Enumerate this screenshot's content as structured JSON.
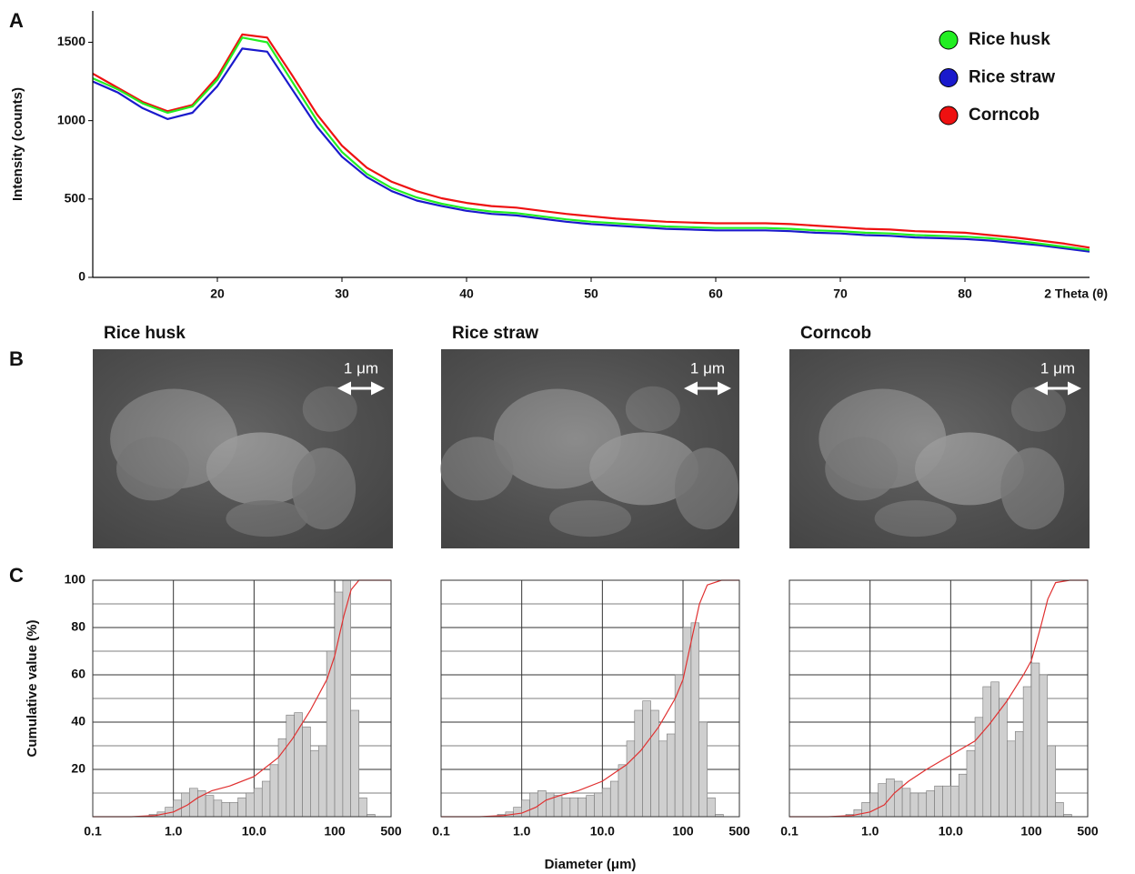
{
  "chart_data": [
    {
      "type": "line",
      "panel": "A",
      "ylabel": "Intensity (counts)",
      "xlabel": "2 Theta (θ)",
      "x": [
        10,
        12,
        14,
        16,
        18,
        20,
        22,
        24,
        26,
        28,
        30,
        32,
        34,
        36,
        38,
        40,
        42,
        44,
        46,
        48,
        50,
        52,
        54,
        56,
        58,
        60,
        62,
        64,
        66,
        68,
        70,
        72,
        74,
        76,
        78,
        80,
        82,
        84,
        86,
        88,
        90
      ],
      "series": [
        {
          "name": "Rice husk",
          "color": "#22ee22",
          "values": [
            1270,
            1200,
            1110,
            1050,
            1090,
            1260,
            1530,
            1500,
            1250,
            1000,
            800,
            660,
            570,
            510,
            470,
            440,
            420,
            410,
            390,
            370,
            355,
            345,
            335,
            325,
            320,
            315,
            315,
            315,
            310,
            300,
            295,
            285,
            280,
            270,
            265,
            260,
            250,
            235,
            215,
            195,
            175
          ]
        },
        {
          "name": "Rice straw",
          "color": "#1a1acc",
          "values": [
            1250,
            1180,
            1080,
            1010,
            1050,
            1220,
            1460,
            1440,
            1200,
            960,
            770,
            640,
            550,
            490,
            455,
            425,
            405,
            395,
            375,
            355,
            340,
            330,
            320,
            310,
            305,
            300,
            300,
            300,
            295,
            285,
            280,
            270,
            265,
            255,
            250,
            245,
            235,
            220,
            205,
            185,
            165
          ]
        },
        {
          "name": "Corncob",
          "color": "#ee1111",
          "values": [
            1300,
            1210,
            1120,
            1060,
            1100,
            1280,
            1550,
            1530,
            1290,
            1040,
            840,
            700,
            610,
            550,
            505,
            475,
            455,
            445,
            425,
            405,
            390,
            375,
            365,
            355,
            350,
            345,
            345,
            345,
            340,
            330,
            320,
            310,
            305,
            295,
            290,
            285,
            270,
            255,
            235,
            215,
            190
          ]
        }
      ],
      "xlim": [
        10,
        90
      ],
      "xticks": [
        20,
        30,
        40,
        50,
        60,
        70,
        80
      ],
      "ylim": [
        0,
        1700
      ],
      "yticks": [
        0,
        500,
        1000,
        1500
      ],
      "legend": "top-right"
    },
    {
      "type": "histogram",
      "panel": "C",
      "ylabel": "Cumulative value (%)",
      "log_x": true,
      "ytick_labels": true,
      "bins": [
        0.5,
        0.63,
        0.79,
        1,
        1.26,
        1.58,
        2,
        2.51,
        3.16,
        3.98,
        5.01,
        6.31,
        7.94,
        10,
        12.6,
        15.8,
        20,
        25.1,
        31.6,
        39.8,
        50.1,
        63.1,
        79.4,
        100,
        126,
        158,
        200,
        251,
        316
      ],
      "values": [
        1,
        2,
        4,
        7,
        10,
        12,
        11,
        9,
        7,
        6,
        6,
        8,
        10,
        12,
        15,
        22,
        33,
        43,
        44,
        38,
        28,
        30,
        70,
        95,
        100,
        45,
        8,
        1
      ],
      "bar_color": "#cfcfcf",
      "cumulative": {
        "color": "#e03030",
        "x": [
          0.1,
          0.3,
          0.6,
          1,
          1.5,
          2,
          3,
          5,
          10,
          20,
          30,
          50,
          80,
          100,
          130,
          160,
          200,
          300,
          500
        ],
        "values": [
          0,
          0,
          0.5,
          2,
          5,
          8,
          11,
          13,
          17,
          25,
          33,
          45,
          58,
          68,
          85,
          96,
          100,
          100,
          100
        ]
      },
      "xlim": [
        0.1,
        500
      ],
      "xticks": [
        0.1,
        {
          "value": 1,
          "label": "1.0"
        },
        {
          "value": 10,
          "label": "10.0"
        },
        100,
        500
      ],
      "ylim": [
        0,
        100
      ],
      "yticks": [
        20,
        40,
        60,
        80,
        100
      ],
      "yminor": [
        10,
        30,
        50,
        70,
        90
      ],
      "grid": true
    },
    {
      "type": "histogram",
      "log_x": true,
      "ytick_labels": false,
      "xlabel": "Diameter (μm)",
      "bins": [
        0.5,
        0.63,
        0.79,
        1,
        1.26,
        1.58,
        2,
        2.51,
        3.16,
        3.98,
        5.01,
        6.31,
        7.94,
        10,
        12.6,
        15.8,
        20,
        25.1,
        31.6,
        39.8,
        50.1,
        63.1,
        79.4,
        100,
        126,
        158,
        200,
        251,
        316
      ],
      "values": [
        1,
        2,
        4,
        7,
        10,
        11,
        10,
        9,
        8,
        8,
        8,
        9,
        10,
        12,
        15,
        22,
        32,
        45,
        49,
        45,
        32,
        35,
        60,
        80,
        82,
        40,
        8,
        1
      ],
      "bar_color": "#cfcfcf",
      "cumulative": {
        "color": "#e03030",
        "x": [
          0.1,
          0.3,
          0.6,
          1,
          1.5,
          2,
          3,
          5,
          10,
          20,
          30,
          50,
          80,
          100,
          130,
          160,
          200,
          300,
          500
        ],
        "values": [
          0,
          0,
          0.5,
          1.5,
          4,
          7,
          9,
          11,
          15,
          22,
          28,
          38,
          50,
          58,
          76,
          90,
          98,
          100,
          100
        ]
      },
      "xlim": [
        0.1,
        500
      ],
      "xticks": [
        0.1,
        {
          "value": 1,
          "label": "1.0"
        },
        {
          "value": 10,
          "label": "10.0"
        },
        100,
        500
      ],
      "ylim": [
        0,
        100
      ],
      "yticks": [
        20,
        40,
        60,
        80,
        100
      ],
      "yminor": [
        10,
        30,
        50,
        70,
        90
      ],
      "grid": true
    },
    {
      "type": "histogram",
      "log_x": true,
      "ytick_labels": false,
      "bins": [
        0.5,
        0.63,
        0.79,
        1,
        1.26,
        1.58,
        2,
        2.51,
        3.16,
        3.98,
        5.01,
        6.31,
        7.94,
        10,
        12.6,
        15.8,
        20,
        25.1,
        31.6,
        39.8,
        50.1,
        63.1,
        79.4,
        100,
        126,
        158,
        200,
        251,
        316
      ],
      "values": [
        1,
        3,
        6,
        10,
        14,
        16,
        15,
        12,
        10,
        10,
        11,
        13,
        13,
        13,
        18,
        28,
        42,
        55,
        57,
        50,
        32,
        36,
        55,
        65,
        60,
        30,
        6,
        1
      ],
      "bar_color": "#cfcfcf",
      "cumulative": {
        "color": "#e03030",
        "x": [
          0.1,
          0.3,
          0.6,
          1,
          1.5,
          2,
          3,
          5,
          10,
          20,
          30,
          50,
          80,
          100,
          130,
          160,
          200,
          300,
          500
        ],
        "values": [
          0,
          0,
          0.5,
          2,
          5,
          10,
          15,
          20,
          26,
          32,
          39,
          49,
          60,
          66,
          80,
          92,
          99,
          100,
          100
        ]
      },
      "xlim": [
        0.1,
        500
      ],
      "xticks": [
        0.1,
        {
          "value": 1,
          "label": "1.0"
        },
        {
          "value": 10,
          "label": "10.0"
        },
        100,
        500
      ],
      "ylim": [
        0,
        100
      ],
      "yticks": [
        20,
        40,
        60,
        80,
        100
      ],
      "yminor": [
        10,
        30,
        50,
        70,
        90
      ],
      "grid": true
    }
  ],
  "sem": {
    "panel": "B",
    "images": [
      {
        "title": "Rice husk",
        "scale_bar": "1 μm"
      },
      {
        "title": "Rice straw",
        "scale_bar": "1 μm"
      },
      {
        "title": "Corncob",
        "scale_bar": "1 μm"
      }
    ]
  }
}
